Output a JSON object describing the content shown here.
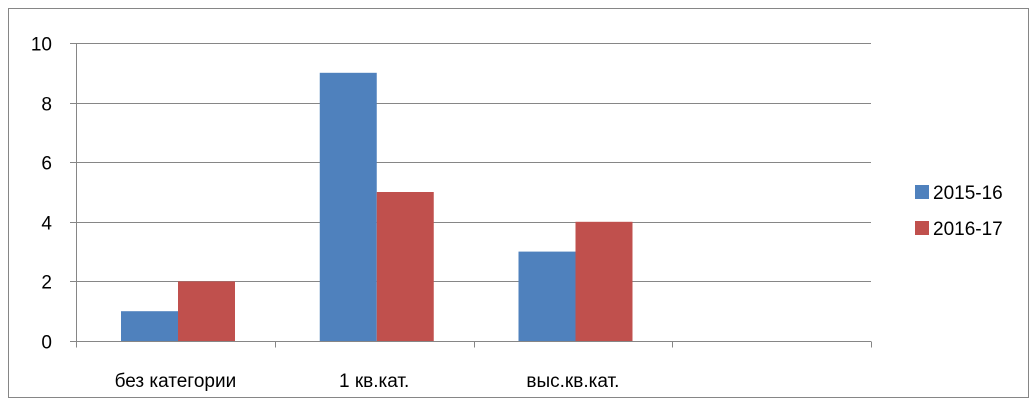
{
  "chart_data": {
    "type": "bar",
    "categories": [
      "без категории",
      "1 кв.кат.",
      "выс.кв.кат.",
      ""
    ],
    "series": [
      {
        "name": "2015-16",
        "values": [
          1,
          9,
          3,
          null
        ],
        "color": "#4F81BD"
      },
      {
        "name": "2016-17",
        "values": [
          2,
          5,
          4,
          null
        ],
        "color": "#C0504D"
      }
    ],
    "ylim": [
      0,
      10
    ],
    "yticks": [
      0,
      2,
      4,
      6,
      8,
      10
    ],
    "grid": true,
    "legend_position": "right"
  }
}
